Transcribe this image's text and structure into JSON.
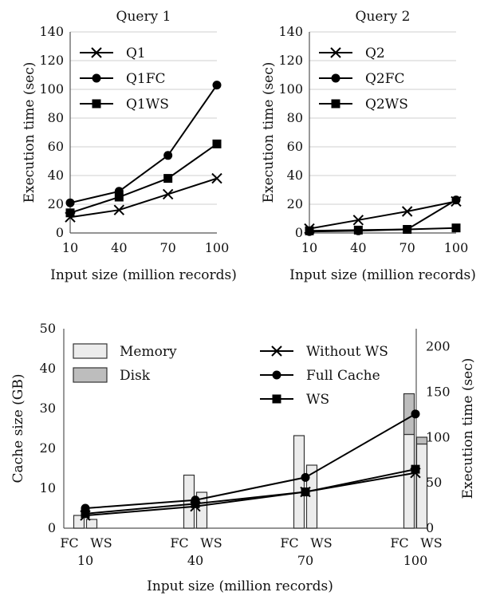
{
  "chart_data": [
    {
      "type": "line",
      "title": "Query 1",
      "xlabel": "Input size (million records)",
      "ylabel": "Execution time (sec)",
      "x": [
        10,
        40,
        70,
        100
      ],
      "xticks": [
        "10",
        "40",
        "70",
        "100"
      ],
      "ylim": [
        0,
        140
      ],
      "yticks": [
        "0",
        "20",
        "40",
        "60",
        "80",
        "100",
        "120",
        "140"
      ],
      "grid": true,
      "legend_position": "top-left",
      "series": [
        {
          "name": "Q1",
          "marker": "x",
          "values": [
            11,
            16,
            27,
            38
          ]
        },
        {
          "name": "Q1FC",
          "marker": "circle",
          "values": [
            21,
            29,
            54,
            103
          ]
        },
        {
          "name": "Q1WS",
          "marker": "square",
          "values": [
            14,
            25,
            38,
            62
          ]
        }
      ]
    },
    {
      "type": "line",
      "title": "Query 2",
      "xlabel": "Input size (million records)",
      "ylabel": "Execution time (sec)",
      "x": [
        10,
        40,
        70,
        100
      ],
      "xticks": [
        "10",
        "40",
        "70",
        "100"
      ],
      "ylim": [
        0,
        140
      ],
      "yticks": [
        "0",
        "20",
        "40",
        "60",
        "80",
        "100",
        "120",
        "140"
      ],
      "grid": true,
      "legend_position": "top-left",
      "series": [
        {
          "name": "Q2",
          "marker": "x",
          "values": [
            3,
            9,
            15,
            22
          ]
        },
        {
          "name": "Q2FC",
          "marker": "circle",
          "values": [
            1,
            1.5,
            2.5,
            23
          ]
        },
        {
          "name": "Q2WS",
          "marker": "square",
          "values": [
            1.5,
            2,
            2.5,
            3.5
          ]
        }
      ]
    },
    {
      "type": "bar",
      "title": "",
      "xlabel": "Input size (million records)",
      "ylabel": "Cache size (GB)",
      "y2label": "Execution time (sec)",
      "categories": [
        "10",
        "40",
        "70",
        "100"
      ],
      "bar_labels": [
        "FC",
        "WS"
      ],
      "ylim": [
        0,
        50
      ],
      "yticks": [
        "0",
        "10",
        "20",
        "30",
        "40",
        "50"
      ],
      "y2lim": [
        0,
        220
      ],
      "y2ticks": [
        "0",
        "50",
        "100",
        "150",
        "200"
      ],
      "legend_position": "top",
      "bar_series": [
        {
          "name": "Memory",
          "color": "#ececec",
          "fc": [
            3.2,
            13.3,
            23.2,
            23.5
          ],
          "ws": [
            2.2,
            9.0,
            15.8,
            21.1
          ]
        },
        {
          "name": "Disk",
          "color": "#bdbdbd",
          "fc": [
            0,
            0,
            0,
            10.2
          ],
          "ws": [
            0,
            0,
            0,
            1.7
          ]
        }
      ],
      "line_series": [
        {
          "name": "Without WS",
          "marker": "x",
          "values": [
            14,
            24,
            40,
            61
          ]
        },
        {
          "name": "Full Cache",
          "marker": "circle",
          "values": [
            22,
            31,
            56,
            126
          ]
        },
        {
          "name": "WS",
          "marker": "square",
          "values": [
            16,
            27,
            40,
            65
          ]
        }
      ]
    }
  ]
}
